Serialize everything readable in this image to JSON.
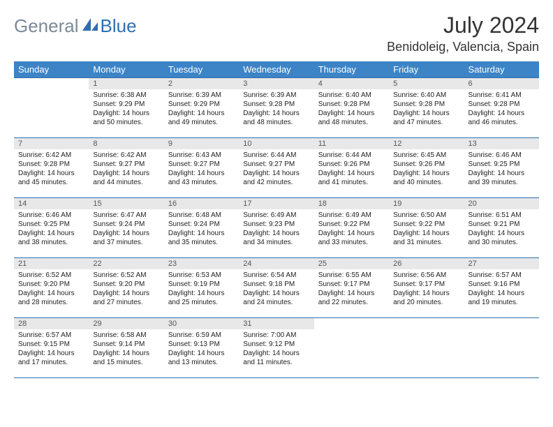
{
  "brand": {
    "first": "General",
    "second": "Blue"
  },
  "title": "July 2024",
  "location": "Benidoleig, Valencia, Spain",
  "colors": {
    "header_bg": "#3c84c6",
    "header_text": "#ffffff",
    "border": "#2f6fb0",
    "daynum_bg": "#e8e8e8",
    "text": "#222222",
    "logo_gray": "#7a8a99",
    "logo_blue": "#2f6fb0"
  },
  "weekday_headers": [
    "Sunday",
    "Monday",
    "Tuesday",
    "Wednesday",
    "Thursday",
    "Friday",
    "Saturday"
  ],
  "weeks": [
    [
      null,
      {
        "d": "1",
        "sr": "6:38 AM",
        "ss": "9:29 PM",
        "dl": "14 hours and 50 minutes."
      },
      {
        "d": "2",
        "sr": "6:39 AM",
        "ss": "9:29 PM",
        "dl": "14 hours and 49 minutes."
      },
      {
        "d": "3",
        "sr": "6:39 AM",
        "ss": "9:28 PM",
        "dl": "14 hours and 48 minutes."
      },
      {
        "d": "4",
        "sr": "6:40 AM",
        "ss": "9:28 PM",
        "dl": "14 hours and 48 minutes."
      },
      {
        "d": "5",
        "sr": "6:40 AM",
        "ss": "9:28 PM",
        "dl": "14 hours and 47 minutes."
      },
      {
        "d": "6",
        "sr": "6:41 AM",
        "ss": "9:28 PM",
        "dl": "14 hours and 46 minutes."
      }
    ],
    [
      {
        "d": "7",
        "sr": "6:42 AM",
        "ss": "9:28 PM",
        "dl": "14 hours and 45 minutes."
      },
      {
        "d": "8",
        "sr": "6:42 AM",
        "ss": "9:27 PM",
        "dl": "14 hours and 44 minutes."
      },
      {
        "d": "9",
        "sr": "6:43 AM",
        "ss": "9:27 PM",
        "dl": "14 hours and 43 minutes."
      },
      {
        "d": "10",
        "sr": "6:44 AM",
        "ss": "9:27 PM",
        "dl": "14 hours and 42 minutes."
      },
      {
        "d": "11",
        "sr": "6:44 AM",
        "ss": "9:26 PM",
        "dl": "14 hours and 41 minutes."
      },
      {
        "d": "12",
        "sr": "6:45 AM",
        "ss": "9:26 PM",
        "dl": "14 hours and 40 minutes."
      },
      {
        "d": "13",
        "sr": "6:46 AM",
        "ss": "9:25 PM",
        "dl": "14 hours and 39 minutes."
      }
    ],
    [
      {
        "d": "14",
        "sr": "6:46 AM",
        "ss": "9:25 PM",
        "dl": "14 hours and 38 minutes."
      },
      {
        "d": "15",
        "sr": "6:47 AM",
        "ss": "9:24 PM",
        "dl": "14 hours and 37 minutes."
      },
      {
        "d": "16",
        "sr": "6:48 AM",
        "ss": "9:24 PM",
        "dl": "14 hours and 35 minutes."
      },
      {
        "d": "17",
        "sr": "6:49 AM",
        "ss": "9:23 PM",
        "dl": "14 hours and 34 minutes."
      },
      {
        "d": "18",
        "sr": "6:49 AM",
        "ss": "9:22 PM",
        "dl": "14 hours and 33 minutes."
      },
      {
        "d": "19",
        "sr": "6:50 AM",
        "ss": "9:22 PM",
        "dl": "14 hours and 31 minutes."
      },
      {
        "d": "20",
        "sr": "6:51 AM",
        "ss": "9:21 PM",
        "dl": "14 hours and 30 minutes."
      }
    ],
    [
      {
        "d": "21",
        "sr": "6:52 AM",
        "ss": "9:20 PM",
        "dl": "14 hours and 28 minutes."
      },
      {
        "d": "22",
        "sr": "6:52 AM",
        "ss": "9:20 PM",
        "dl": "14 hours and 27 minutes."
      },
      {
        "d": "23",
        "sr": "6:53 AM",
        "ss": "9:19 PM",
        "dl": "14 hours and 25 minutes."
      },
      {
        "d": "24",
        "sr": "6:54 AM",
        "ss": "9:18 PM",
        "dl": "14 hours and 24 minutes."
      },
      {
        "d": "25",
        "sr": "6:55 AM",
        "ss": "9:17 PM",
        "dl": "14 hours and 22 minutes."
      },
      {
        "d": "26",
        "sr": "6:56 AM",
        "ss": "9:17 PM",
        "dl": "14 hours and 20 minutes."
      },
      {
        "d": "27",
        "sr": "6:57 AM",
        "ss": "9:16 PM",
        "dl": "14 hours and 19 minutes."
      }
    ],
    [
      {
        "d": "28",
        "sr": "6:57 AM",
        "ss": "9:15 PM",
        "dl": "14 hours and 17 minutes."
      },
      {
        "d": "29",
        "sr": "6:58 AM",
        "ss": "9:14 PM",
        "dl": "14 hours and 15 minutes."
      },
      {
        "d": "30",
        "sr": "6:59 AM",
        "ss": "9:13 PM",
        "dl": "14 hours and 13 minutes."
      },
      {
        "d": "31",
        "sr": "7:00 AM",
        "ss": "9:12 PM",
        "dl": "14 hours and 11 minutes."
      },
      null,
      null,
      null
    ]
  ],
  "labels": {
    "sunrise": "Sunrise:",
    "sunset": "Sunset:",
    "daylight": "Daylight:"
  }
}
